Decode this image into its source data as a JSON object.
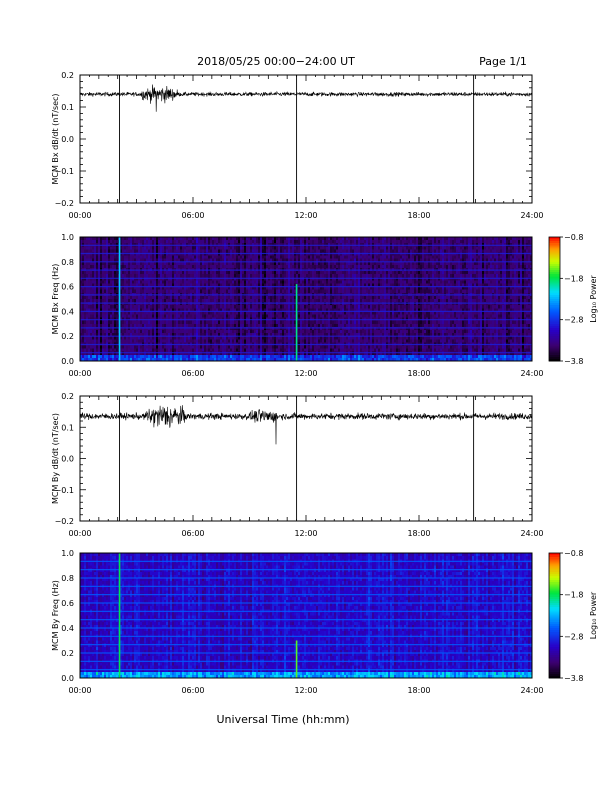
{
  "header": {
    "title": "2018/05/25  00:00−24:00 UT",
    "page": "Page 1/1"
  },
  "chart_data": [
    {
      "type": "line",
      "panel": "bx-dbdt",
      "ylabel": "MCM Bx dB/dt (nT/sec)",
      "ylim": [
        -0.2,
        0.2
      ],
      "yticks": [
        "0.2",
        "0.1",
        "0.0",
        "−0.1",
        "−0.2"
      ],
      "ytick_values": [
        0.2,
        0.1,
        0.0,
        -0.1,
        -0.2
      ],
      "xlim": [
        0,
        24
      ],
      "xticks": [
        "00:00",
        "06:00",
        "12:00",
        "18:00",
        "24:00"
      ],
      "series": [
        {
          "baseline": 0.14,
          "noise": 0.006
        }
      ],
      "bursts": [
        {
          "x": [
            3.2,
            5.2
          ],
          "amp": 0.02
        }
      ],
      "spikes_down": [
        {
          "x": 4.05,
          "y": 0.085
        }
      ],
      "vertical_lines": [
        2.1,
        11.5,
        20.9
      ]
    },
    {
      "type": "heatmap",
      "panel": "bx-spectrogram",
      "ylabel": "MCM Bx Freq (Hz)",
      "ylim": [
        0,
        1
      ],
      "yticks": [
        "1.0",
        "0.8",
        "0.6",
        "0.4",
        "0.2",
        "0.0"
      ],
      "ytick_values": [
        1.0,
        0.8,
        0.6,
        0.4,
        0.2,
        0.0
      ],
      "xlim": [
        0,
        24
      ],
      "xticks": [
        "00:00",
        "06:00",
        "12:00",
        "18:00",
        "24:00"
      ],
      "colorbar": {
        "label": "Log₁₀ Power",
        "range": [
          -3.8,
          -0.8
        ],
        "ticks": [
          "−0.8",
          "−1.8",
          "−2.8",
          "−3.8"
        ],
        "tick_values": [
          -0.8,
          -1.8,
          -2.8,
          -3.8
        ]
      },
      "background_power": -3.45,
      "harmonic_lines_hz": [
        0.067,
        0.133,
        0.2,
        0.267,
        0.333,
        0.4,
        0.467,
        0.533,
        0.6,
        0.667,
        0.733,
        0.8,
        0.867,
        0.933
      ],
      "harmonic_power": -2.9,
      "event_lines": [
        {
          "x": 2.1,
          "top_hz": 1.0,
          "power": -2.2
        },
        {
          "x": 11.5,
          "top_hz": 0.62,
          "power": -1.9
        }
      ]
    },
    {
      "type": "line",
      "panel": "by-dbdt",
      "ylabel": "MCM By dB/dt (nT/sec)",
      "ylim": [
        -0.2,
        0.2
      ],
      "yticks": [
        "0.2",
        "0.1",
        "0.0",
        "−0.1",
        "−0.2"
      ],
      "ytick_values": [
        0.2,
        0.1,
        0.0,
        -0.1,
        -0.2
      ],
      "xlim": [
        0,
        24
      ],
      "xticks": [
        "00:00",
        "06:00",
        "12:00",
        "18:00",
        "24:00"
      ],
      "series": [
        {
          "baseline": 0.135,
          "noise": 0.01
        }
      ],
      "bursts": [
        {
          "x": [
            3.5,
            5.6
          ],
          "amp": 0.03
        },
        {
          "x": [
            9.0,
            10.5
          ],
          "amp": 0.012
        }
      ],
      "spikes_down": [
        {
          "x": 10.4,
          "y": 0.045
        }
      ],
      "vertical_lines": [
        2.1,
        11.5,
        20.9
      ]
    },
    {
      "type": "heatmap",
      "panel": "by-spectrogram",
      "ylabel": "MCM By Freq (Hz)",
      "xlabel": "Universal Time (hh:mm)",
      "ylim": [
        0,
        1
      ],
      "yticks": [
        "1.0",
        "0.8",
        "0.6",
        "0.4",
        "0.2",
        "0.0"
      ],
      "ytick_values": [
        1.0,
        0.8,
        0.6,
        0.4,
        0.2,
        0.0
      ],
      "xlim": [
        0,
        24
      ],
      "xticks": [
        "00:00",
        "06:00",
        "12:00",
        "18:00",
        "24:00"
      ],
      "colorbar": {
        "label": "Log₁₀ Power",
        "range": [
          -3.8,
          -0.8
        ],
        "ticks": [
          "−0.8",
          "−1.8",
          "−2.8",
          "−3.8"
        ],
        "tick_values": [
          -0.8,
          -1.8,
          -2.8,
          -3.8
        ]
      },
      "background_power": -3.05,
      "harmonic_lines_hz": [
        0.067,
        0.133,
        0.2,
        0.267,
        0.333,
        0.4,
        0.467,
        0.533,
        0.6,
        0.667,
        0.733,
        0.8,
        0.867,
        0.933
      ],
      "harmonic_power": -2.6,
      "event_lines": [
        {
          "x": 2.1,
          "top_hz": 1.0,
          "power": -1.8
        },
        {
          "x": 11.5,
          "top_hz": 0.3,
          "power": -1.6
        }
      ]
    }
  ]
}
